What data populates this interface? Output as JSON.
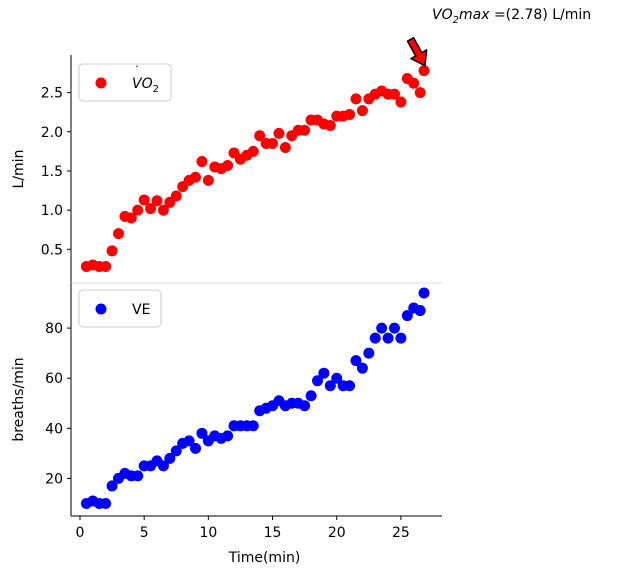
{
  "chart_data": [
    {
      "type": "scatter",
      "ylabel": "L/min",
      "xlim": [
        -0.7,
        28.2
      ],
      "ylim": [
        0.07,
        2.98
      ],
      "yticks": [
        0.5,
        1.0,
        1.5,
        2.0,
        2.5
      ],
      "ytick_labels": [
        "0.5",
        "1.0",
        "1.5",
        "2.0",
        "2.5"
      ],
      "legend_position": "top-left",
      "series": [
        {
          "name": "VO2",
          "color": "#ff0000",
          "x": [
            0.5,
            1.0,
            1.5,
            2.0,
            2.5,
            3.0,
            3.5,
            4.0,
            4.5,
            5.0,
            5.5,
            6.0,
            6.5,
            7.0,
            7.5,
            8.0,
            8.5,
            9.0,
            9.5,
            10.0,
            10.5,
            11.0,
            11.5,
            12.0,
            12.5,
            13.0,
            13.5,
            14.0,
            14.5,
            15.0,
            15.5,
            16.0,
            16.5,
            17.0,
            17.5,
            18.0,
            18.5,
            19.0,
            19.5,
            20.0,
            20.5,
            21.0,
            21.5,
            22.0,
            22.5,
            23.0,
            23.5,
            24.0,
            24.5,
            25.0,
            25.5,
            26.0,
            26.5,
            26.8
          ],
          "y": [
            0.28,
            0.3,
            0.28,
            0.28,
            0.48,
            0.7,
            0.92,
            0.9,
            1.0,
            1.13,
            1.02,
            1.12,
            1.0,
            1.1,
            1.18,
            1.3,
            1.38,
            1.42,
            1.62,
            1.38,
            1.55,
            1.53,
            1.57,
            1.73,
            1.65,
            1.7,
            1.75,
            1.95,
            1.85,
            1.85,
            1.98,
            1.8,
            1.95,
            2.02,
            2.02,
            2.15,
            2.15,
            2.1,
            2.08,
            2.2,
            2.2,
            2.22,
            2.42,
            2.27,
            2.42,
            2.48,
            2.52,
            2.48,
            2.48,
            2.38,
            2.68,
            2.62,
            2.5,
            2.78
          ]
        }
      ],
      "annotation": {
        "text_prefix": "V",
        "text_sub": "2",
        "text_max": "max",
        "text_value": " =(2.78) L/min",
        "x": 26.8,
        "y": 2.78,
        "arrow_color": "#ff0000"
      }
    },
    {
      "type": "scatter",
      "xlabel": "Time(min)",
      "ylabel": "breaths/min",
      "xlim": [
        -0.7,
        28.2
      ],
      "ylim": [
        5,
        98
      ],
      "xticks": [
        0,
        5,
        10,
        15,
        20,
        25
      ],
      "xtick_labels": [
        "0",
        "5",
        "10",
        "15",
        "20",
        "25"
      ],
      "yticks": [
        20,
        40,
        60,
        80
      ],
      "ytick_labels": [
        "20",
        "40",
        "60",
        "80"
      ],
      "legend_position": "top-left",
      "series": [
        {
          "name": "VE",
          "color": "#0000ff",
          "x": [
            0.5,
            1.0,
            1.5,
            2.0,
            2.5,
            3.0,
            3.5,
            4.0,
            4.5,
            5.0,
            5.5,
            6.0,
            6.5,
            7.0,
            7.5,
            8.0,
            8.5,
            9.0,
            9.5,
            10.0,
            10.5,
            11.0,
            11.5,
            12.0,
            12.5,
            13.0,
            13.5,
            14.0,
            14.5,
            15.0,
            15.5,
            16.0,
            16.5,
            17.0,
            17.5,
            18.0,
            18.5,
            19.0,
            19.5,
            20.0,
            20.5,
            21.0,
            21.5,
            22.0,
            22.5,
            23.0,
            23.5,
            24.0,
            24.5,
            25.0,
            25.5,
            26.0,
            26.5,
            26.8
          ],
          "y": [
            10,
            11,
            10,
            10,
            17,
            20,
            22,
            21,
            21,
            25,
            25,
            27,
            25,
            28,
            31,
            34,
            35,
            32,
            38,
            35,
            37,
            36,
            37,
            41,
            41,
            41,
            41,
            47,
            48,
            49,
            51,
            49,
            50,
            50,
            49,
            53,
            59,
            62,
            57,
            60,
            57,
            57,
            67,
            64,
            70,
            76,
            80,
            76,
            80,
            76,
            85,
            88,
            87,
            94
          ]
        }
      ]
    }
  ]
}
